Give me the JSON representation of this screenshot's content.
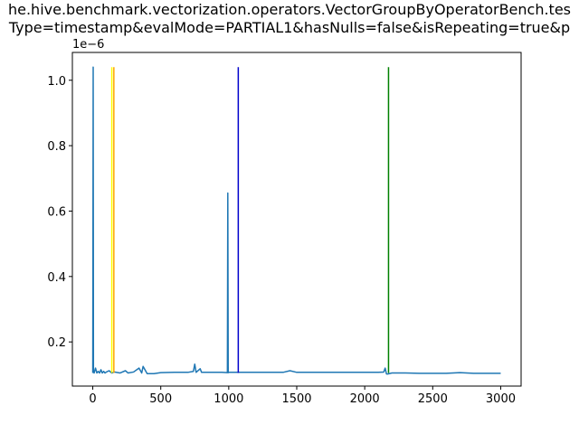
{
  "chart_data": {
    "type": "line",
    "title_lines": [
      "he.hive.benchmark.vectorization.operators.VectorGroupByOperatorBench.tes",
      "Type=timestamp&evalMode=PARTIAL1&hasNulls=false&isRepeating=true&p"
    ],
    "xlabel": "",
    "ylabel": "",
    "y_offset_label": "1e−6",
    "xlim": [
      -150,
      3150
    ],
    "ylim": [
      0.065,
      1.085
    ],
    "x_ticks": [
      0,
      500,
      1000,
      1500,
      2000,
      2500,
      3000
    ],
    "x_tick_labels": [
      "0",
      "500",
      "1000",
      "1500",
      "2000",
      "2500",
      "3000"
    ],
    "y_ticks": [
      0.2,
      0.4,
      0.6,
      0.8,
      1.0
    ],
    "y_tick_labels": [
      "0.2",
      "0.4",
      "0.6",
      "0.8",
      "1.0"
    ],
    "grid": false,
    "series": [
      {
        "color": "#1f77b4",
        "x": [
          0,
          3,
          5,
          10,
          20,
          30,
          40,
          50,
          60,
          70,
          80,
          90,
          100,
          120,
          140,
          160,
          200,
          240,
          260,
          300,
          340,
          360,
          370,
          400,
          450,
          500,
          600,
          700,
          740,
          750,
          760,
          790,
          800,
          820,
          900,
          950,
          990,
          993,
          996,
          1000,
          1050,
          1100,
          1200,
          1300,
          1400,
          1450,
          1500,
          1600,
          1700,
          1800,
          1900,
          2000,
          2100,
          2140,
          2150,
          2160,
          2170,
          2200,
          2300,
          2400,
          2500,
          2600,
          2700,
          2800,
          2900,
          3000
        ],
        "y": [
          0.105,
          1.04,
          0.11,
          0.105,
          0.12,
          0.105,
          0.11,
          0.105,
          0.115,
          0.105,
          0.11,
          0.105,
          0.108,
          0.112,
          0.105,
          0.108,
          0.105,
          0.112,
          0.105,
          0.108,
          0.12,
          0.105,
          0.125,
          0.103,
          0.103,
          0.106,
          0.107,
          0.107,
          0.11,
          0.132,
          0.107,
          0.118,
          0.107,
          0.107,
          0.107,
          0.107,
          0.106,
          0.655,
          0.106,
          0.107,
          0.107,
          0.107,
          0.107,
          0.107,
          0.107,
          0.112,
          0.107,
          0.107,
          0.107,
          0.107,
          0.107,
          0.107,
          0.107,
          0.108,
          0.12,
          0.102,
          0.102,
          0.105,
          0.105,
          0.104,
          0.104,
          0.104,
          0.106,
          0.104,
          0.104,
          0.104
        ]
      }
    ],
    "vertical_lines": [
      {
        "x": 140,
        "color": "#ffff00",
        "y0": 0.105,
        "y1": 1.04
      },
      {
        "x": 155,
        "color": "#ffa500",
        "y0": 0.105,
        "y1": 1.04
      },
      {
        "x": 1070,
        "color": "#0000cc",
        "y0": 0.105,
        "y1": 1.04
      },
      {
        "x": 2175,
        "color": "#008000",
        "y0": 0.105,
        "y1": 1.04
      }
    ]
  }
}
